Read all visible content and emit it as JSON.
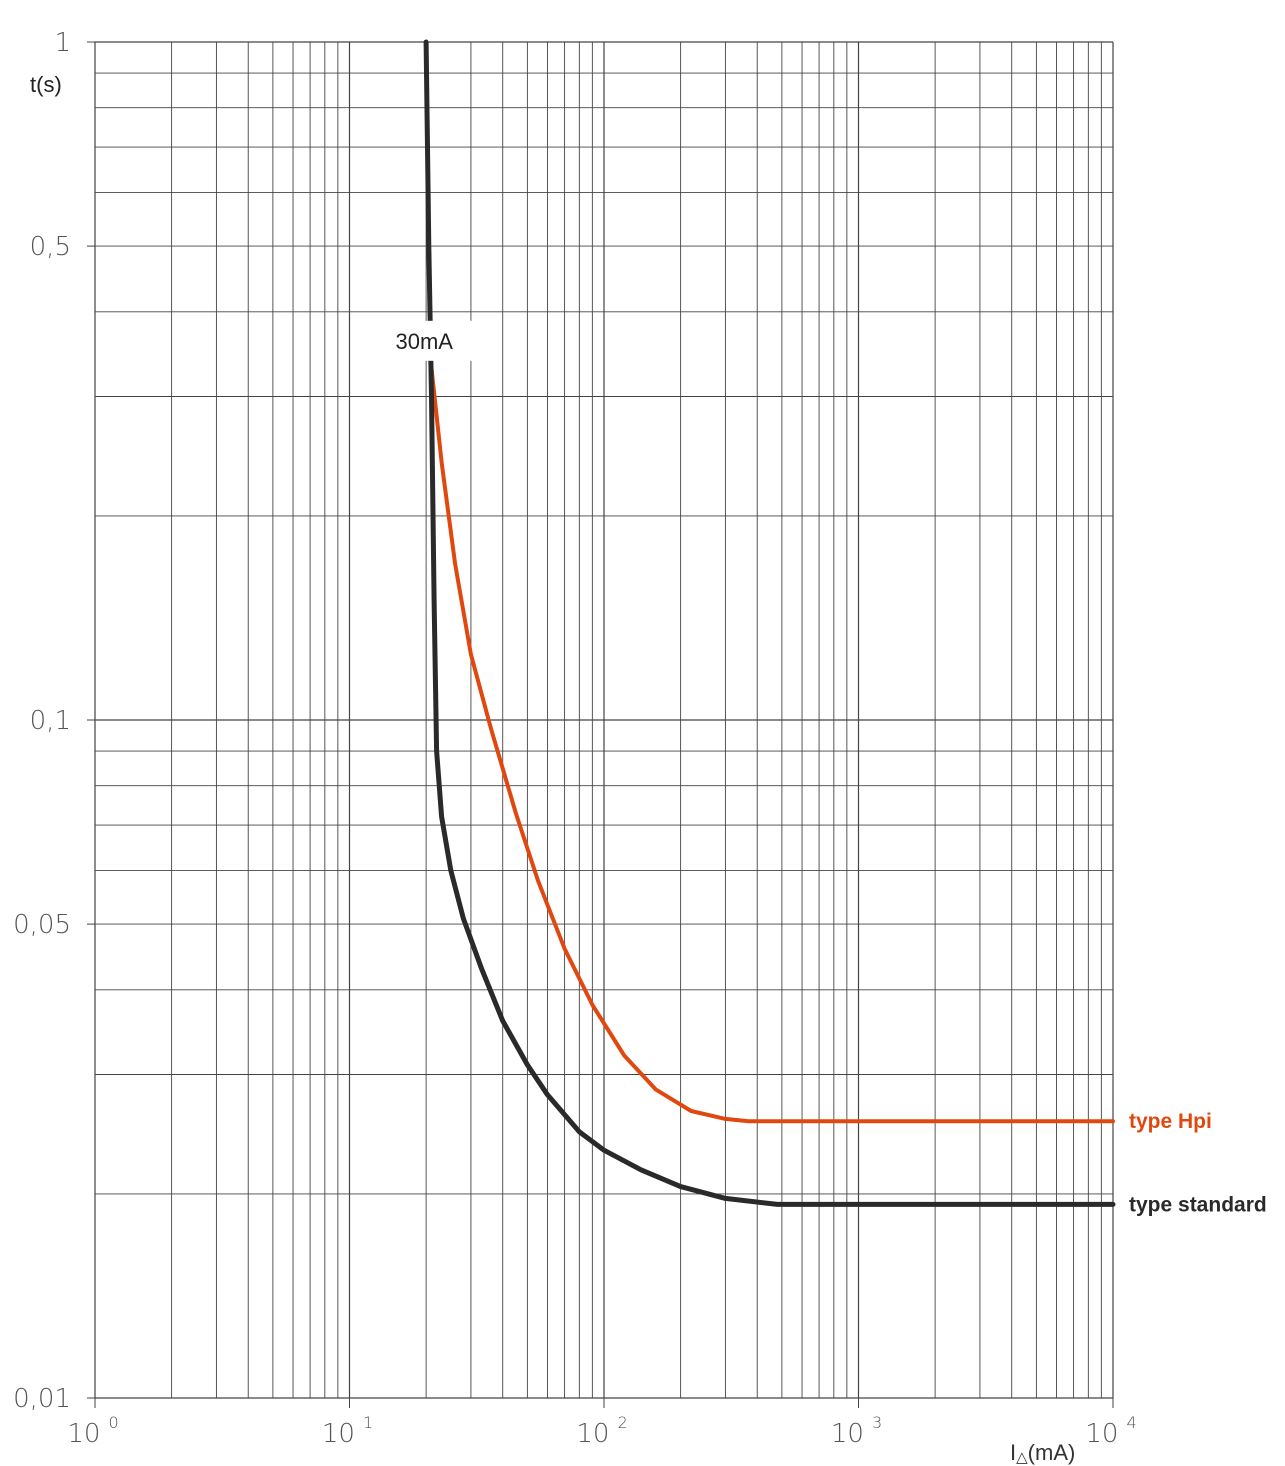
{
  "chart_data": {
    "type": "line",
    "ylabel": "t(s)",
    "xlabel_main": "I",
    "xlabel_sub": "△",
    "xlabel_unit": "(mA)",
    "xscale": "log",
    "yscale": "log",
    "xlim": [
      1,
      10000
    ],
    "ylim": [
      0.01,
      1
    ],
    "grid": true,
    "x_ticks": [
      {
        "base": "10",
        "exp": "0",
        "value": 1
      },
      {
        "base": "10",
        "exp": "1",
        "value": 10
      },
      {
        "base": "10",
        "exp": "2",
        "value": 100
      },
      {
        "base": "10",
        "exp": "3",
        "value": 1000
      },
      {
        "base": "10",
        "exp": "4",
        "value": 10000
      }
    ],
    "y_ticks": [
      {
        "label": "1",
        "value": 1
      },
      {
        "label": "0,5",
        "value": 0.5
      },
      {
        "label": "0,1",
        "value": 0.1
      },
      {
        "label": "0,05",
        "value": 0.05
      },
      {
        "label": "0,01",
        "value": 0.01
      }
    ],
    "annotation": {
      "text": "30mA",
      "x": 21,
      "y": 0.36
    },
    "series": [
      {
        "name": "type Hpi",
        "color": "#e0480f",
        "x": [
          21,
          23,
          26,
          30,
          36,
          45,
          55,
          70,
          90,
          120,
          160,
          220,
          300,
          370,
          500,
          1000,
          10000
        ],
        "y": [
          0.33,
          0.24,
          0.17,
          0.125,
          0.097,
          0.073,
          0.058,
          0.046,
          0.038,
          0.032,
          0.0285,
          0.0265,
          0.0258,
          0.0256,
          0.0256,
          0.0256,
          0.0256
        ]
      },
      {
        "name": "type standard",
        "color": "#2a2a2a",
        "x": [
          20,
          20.5,
          21,
          21.5,
          22,
          23,
          25,
          28,
          33,
          40,
          50,
          60,
          80,
          100,
          140,
          200,
          300,
          480,
          1000,
          10000
        ],
        "y": [
          1.0,
          0.5,
          0.3,
          0.15,
          0.09,
          0.072,
          0.06,
          0.051,
          0.043,
          0.036,
          0.031,
          0.028,
          0.0247,
          0.0232,
          0.0217,
          0.0205,
          0.0197,
          0.0193,
          0.0193,
          0.0193
        ]
      }
    ]
  }
}
